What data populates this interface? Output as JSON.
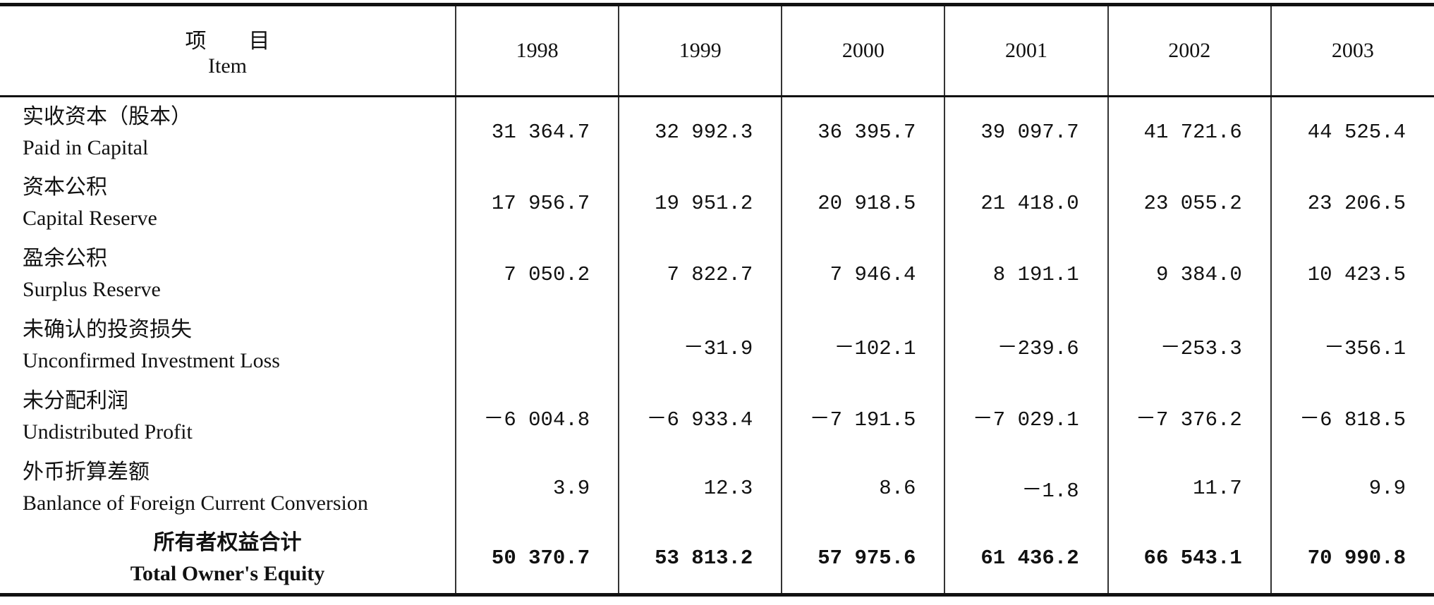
{
  "table": {
    "header": {
      "item_cn": "项　　目",
      "item_en": "Item",
      "years": [
        "1998",
        "1999",
        "2000",
        "2001",
        "2002",
        "2003"
      ]
    },
    "rows": [
      {
        "cn": "实收资本（股本）",
        "en": "Paid in Capital",
        "values": [
          "31 364.7",
          "32 992.3",
          "36 395.7",
          "39 097.7",
          "41 721.6",
          "44 525.4"
        ]
      },
      {
        "cn": "资本公积",
        "en": "Capital Reserve",
        "values": [
          "17 956.7",
          "19 951.2",
          "20 918.5",
          "21 418.0",
          "23 055.2",
          "23 206.5"
        ]
      },
      {
        "cn": "盈余公积",
        "en": "Surplus Reserve",
        "values": [
          "7 050.2",
          "7 822.7",
          "7 946.4",
          "8 191.1",
          "9 384.0",
          "10 423.5"
        ]
      },
      {
        "cn": "未确认的投资损失",
        "en": "Unconfirmed Investment Loss",
        "values": [
          null,
          "－31.9",
          "－102.1",
          "－239.6",
          "－253.3",
          "－356.1"
        ]
      },
      {
        "cn": "未分配利润",
        "en": "Undistributed Profit",
        "values": [
          "－6 004.8",
          "－6 933.4",
          "－7 191.5",
          "－7 029.1",
          "－7 376.2",
          "－6 818.5"
        ]
      },
      {
        "cn": "外币折算差额",
        "en": "Banlance of Foreign Current Conversion",
        "values": [
          "3.9",
          "12.3",
          "8.6",
          "－1.8",
          "11.7",
          "9.9"
        ]
      },
      {
        "cn": "所有者权益合计",
        "en": "Total Owner's Equity",
        "values": [
          "50 370.7",
          "53 813.2",
          "57 975.6",
          "61 436.2",
          "66 543.1",
          "70 990.8"
        ],
        "bold": true
      }
    ]
  }
}
